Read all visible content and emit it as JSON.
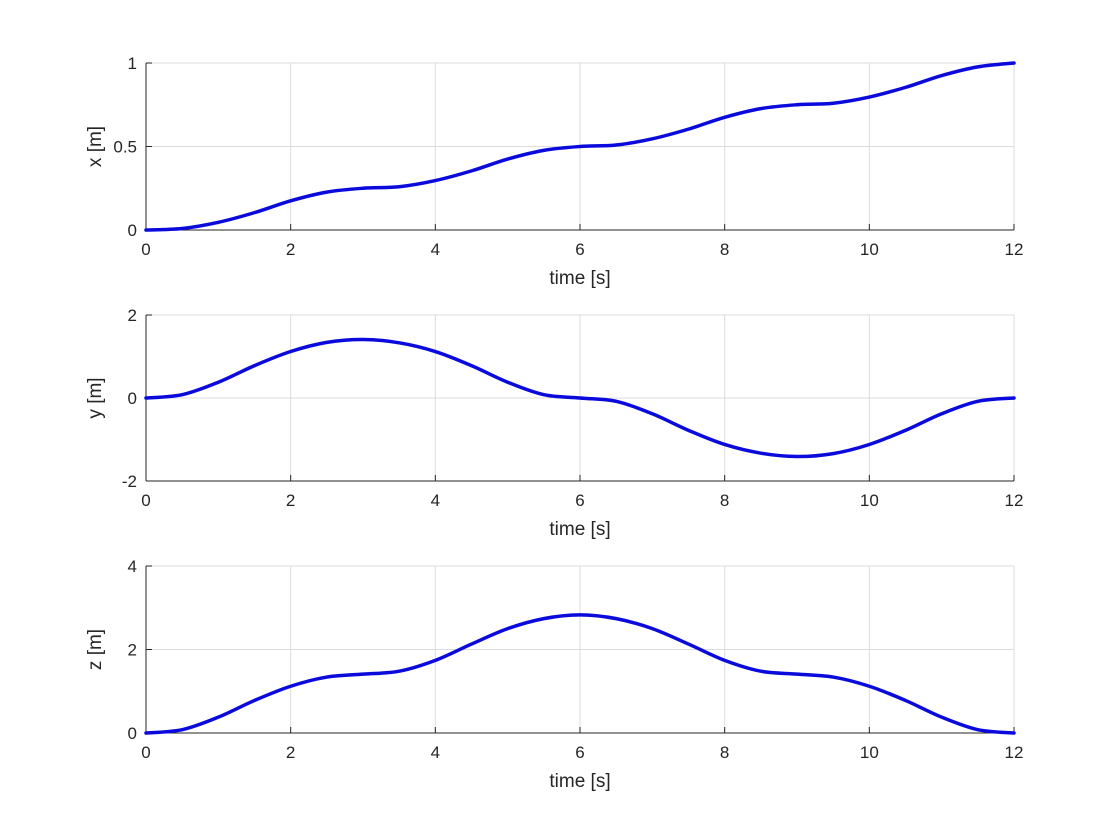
{
  "figure": {
    "background": "#ffffff"
  },
  "style": {
    "line_color": "#0a0adc",
    "grid_color": "#dcdcdc",
    "axis_color": "#262626"
  },
  "chart_data": [
    {
      "type": "line",
      "xlabel": "time [s]",
      "ylabel": "x [m]",
      "xlim": [
        0,
        12
      ],
      "ylim": [
        0,
        1
      ],
      "xticks": [
        0,
        2,
        4,
        6,
        8,
        10,
        12
      ],
      "yticks": [
        0,
        0.5,
        1
      ],
      "grid": true,
      "series": [
        {
          "x": [
            0,
            0.5,
            1,
            1.5,
            2,
            2.5,
            3,
            3.5,
            4,
            4.5,
            5,
            5.5,
            6,
            6.5,
            7,
            7.5,
            8,
            8.5,
            9,
            9.5,
            10,
            10.5,
            11,
            11.5,
            12
          ],
          "y": [
            0,
            0.009,
            0.046,
            0.104,
            0.175,
            0.227,
            0.25,
            0.259,
            0.296,
            0.354,
            0.425,
            0.477,
            0.5,
            0.509,
            0.546,
            0.604,
            0.675,
            0.727,
            0.75,
            0.759,
            0.796,
            0.854,
            0.925,
            0.977,
            1.0
          ]
        }
      ]
    },
    {
      "type": "line",
      "xlabel": "time [s]",
      "ylabel": "y [m]",
      "xlim": [
        0,
        12
      ],
      "ylim": [
        -2,
        2
      ],
      "xticks": [
        0,
        2,
        4,
        6,
        8,
        10,
        12
      ],
      "yticks": [
        -2,
        0,
        2
      ],
      "grid": true,
      "series": [
        {
          "x": [
            0,
            0.5,
            1,
            1.5,
            2,
            2.5,
            3,
            3.5,
            4,
            4.5,
            5,
            5.5,
            6,
            6.5,
            7,
            7.5,
            8,
            8.5,
            9,
            9.5,
            10,
            10.5,
            11,
            11.5,
            12
          ],
          "y": [
            0,
            0.08,
            0.38,
            0.78,
            1.12,
            1.34,
            1.41,
            1.33,
            1.12,
            0.78,
            0.38,
            0.08,
            0,
            -0.08,
            -0.38,
            -0.78,
            -1.12,
            -1.33,
            -1.41,
            -1.34,
            -1.12,
            -0.78,
            -0.38,
            -0.08,
            0
          ]
        }
      ]
    },
    {
      "type": "line",
      "xlabel": "time [s]",
      "ylabel": "z [m]",
      "xlim": [
        0,
        12
      ],
      "ylim": [
        0,
        4
      ],
      "xticks": [
        0,
        2,
        4,
        6,
        8,
        10,
        12
      ],
      "yticks": [
        0,
        2,
        4
      ],
      "grid": true,
      "series": [
        {
          "x": [
            0,
            0.5,
            1,
            1.5,
            2,
            2.5,
            3,
            3.5,
            4,
            4.5,
            5,
            5.5,
            6,
            6.5,
            7,
            7.5,
            8,
            8.5,
            9,
            9.5,
            10,
            10.5,
            11,
            11.5,
            12
          ],
          "y": [
            0,
            0.08,
            0.38,
            0.78,
            1.12,
            1.34,
            1.41,
            1.48,
            1.74,
            2.13,
            2.5,
            2.74,
            2.83,
            2.74,
            2.5,
            2.13,
            1.74,
            1.48,
            1.41,
            1.34,
            1.12,
            0.78,
            0.38,
            0.08,
            0
          ]
        }
      ]
    }
  ]
}
